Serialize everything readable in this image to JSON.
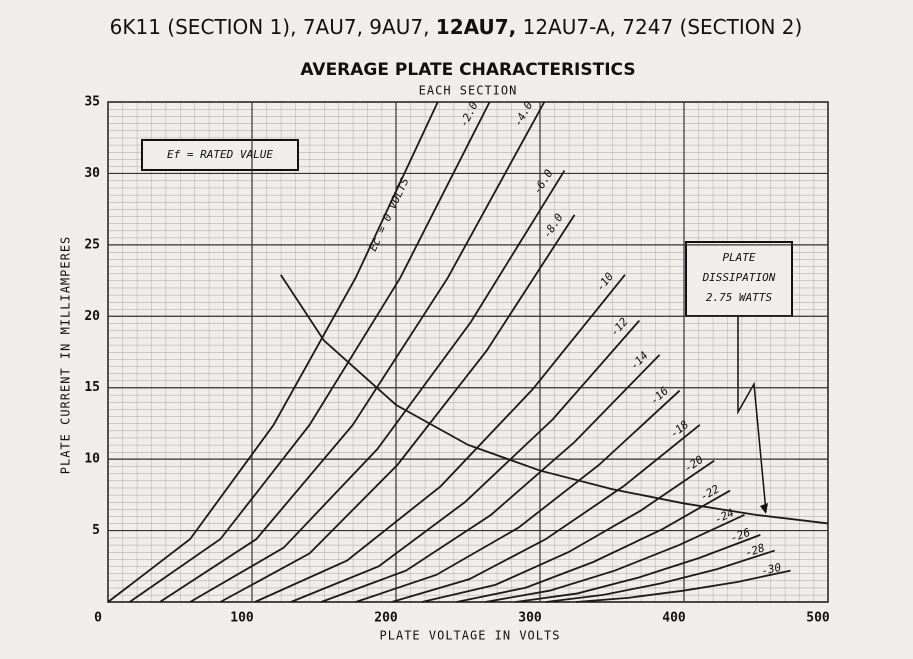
{
  "chart_data": {
    "type": "line",
    "title_parts": [
      "6K11 (SECTION 1), 7AU7, 9AU7, ",
      "12AU7,",
      " 12AU7-A, 7247 (SECTION 2)"
    ],
    "title": "AVERAGE PLATE CHARACTERISTICS",
    "subtitle": "EACH SECTION",
    "x_label": "PLATE VOLTAGE IN VOLTS",
    "y_label": "PLATE CURRENT IN MILLIAMPERES",
    "annotation": "Ef = RATED VALUE",
    "dissipation_label": [
      "PLATE",
      "DISSIPATION",
      "2.75 WATTS"
    ],
    "xlim": [
      0,
      500
    ],
    "ylim": [
      0,
      35
    ],
    "xticks": [
      0,
      100,
      200,
      300,
      400,
      500
    ],
    "yticks": [
      5,
      10,
      15,
      20,
      25,
      30,
      35
    ],
    "grid": true,
    "color": "#1a1a1a",
    "series": [
      {
        "name": "Ec = 0 VOLTS",
        "x": [
          0,
          57,
          115,
          172,
          229
        ],
        "values": [
          0,
          4.4,
          12.4,
          22.7,
          35
        ]
      },
      {
        "name": "-2.0",
        "x": [
          15,
          78,
          140,
          203,
          265
        ],
        "values": [
          0,
          4.4,
          12.4,
          22.7,
          35
        ]
      },
      {
        "name": "-4.0",
        "x": [
          36,
          103,
          170,
          236,
          303
        ],
        "values": [
          0,
          4.4,
          12.4,
          22.7,
          35
        ]
      },
      {
        "name": "-6.0",
        "x": [
          57,
          122,
          187,
          252,
          317
        ],
        "values": [
          0,
          3.8,
          10.7,
          19.6,
          30.2
        ]
      },
      {
        "name": "-8.0",
        "x": [
          78,
          140,
          201,
          263,
          324
        ],
        "values": [
          0,
          3.4,
          9.6,
          17.6,
          27.1
        ]
      },
      {
        "name": "-10",
        "x": [
          102,
          166,
          231,
          295,
          359
        ],
        "values": [
          0,
          2.9,
          8.1,
          14.9,
          22.9
        ]
      },
      {
        "name": "-12",
        "x": [
          127,
          188,
          248,
          309,
          369
        ],
        "values": [
          0,
          2.5,
          7.0,
          12.8,
          19.7
        ]
      },
      {
        "name": "-14",
        "x": [
          148,
          207,
          266,
          324,
          383
        ],
        "values": [
          0,
          2.2,
          6.1,
          11.2,
          17.3
        ]
      },
      {
        "name": "-16",
        "x": [
          172,
          228,
          285,
          341,
          397
        ],
        "values": [
          0,
          1.9,
          5.2,
          9.6,
          14.8
        ]
      },
      {
        "name": "-18",
        "x": [
          197,
          251,
          304,
          358,
          411
        ],
        "values": [
          0,
          1.6,
          4.4,
          8.1,
          12.4
        ]
      },
      {
        "name": "-20",
        "x": [
          218,
          269,
          320,
          370,
          421
        ],
        "values": [
          0,
          1.2,
          3.5,
          6.4,
          9.9
        ]
      },
      {
        "name": "-22",
        "x": [
          242,
          290,
          337,
          385,
          432
        ],
        "values": [
          0,
          1.0,
          2.8,
          5.1,
          7.8
        ]
      },
      {
        "name": "-24",
        "x": [
          262,
          307,
          352,
          397,
          442
        ],
        "values": [
          0,
          0.8,
          2.2,
          4.0,
          6.1
        ]
      },
      {
        "name": "-26",
        "x": [
          283,
          326,
          368,
          411,
          453
        ],
        "values": [
          0,
          0.6,
          1.7,
          3.1,
          4.7
        ]
      },
      {
        "name": "-28",
        "x": [
          304,
          344,
          384,
          423,
          463
        ],
        "values": [
          0,
          0.5,
          1.3,
          2.3,
          3.6
        ]
      },
      {
        "name": "-30",
        "x": [
          325,
          362,
          400,
          437,
          474
        ],
        "values": [
          0,
          0.3,
          0.8,
          1.4,
          2.2
        ]
      }
    ],
    "dissipation_curve": {
      "x": [
        120,
        150,
        200,
        250,
        300,
        350,
        400,
        450,
        500
      ],
      "values": [
        22.9,
        18.3,
        13.8,
        11.0,
        9.2,
        7.9,
        6.9,
        6.1,
        5.5
      ]
    }
  }
}
